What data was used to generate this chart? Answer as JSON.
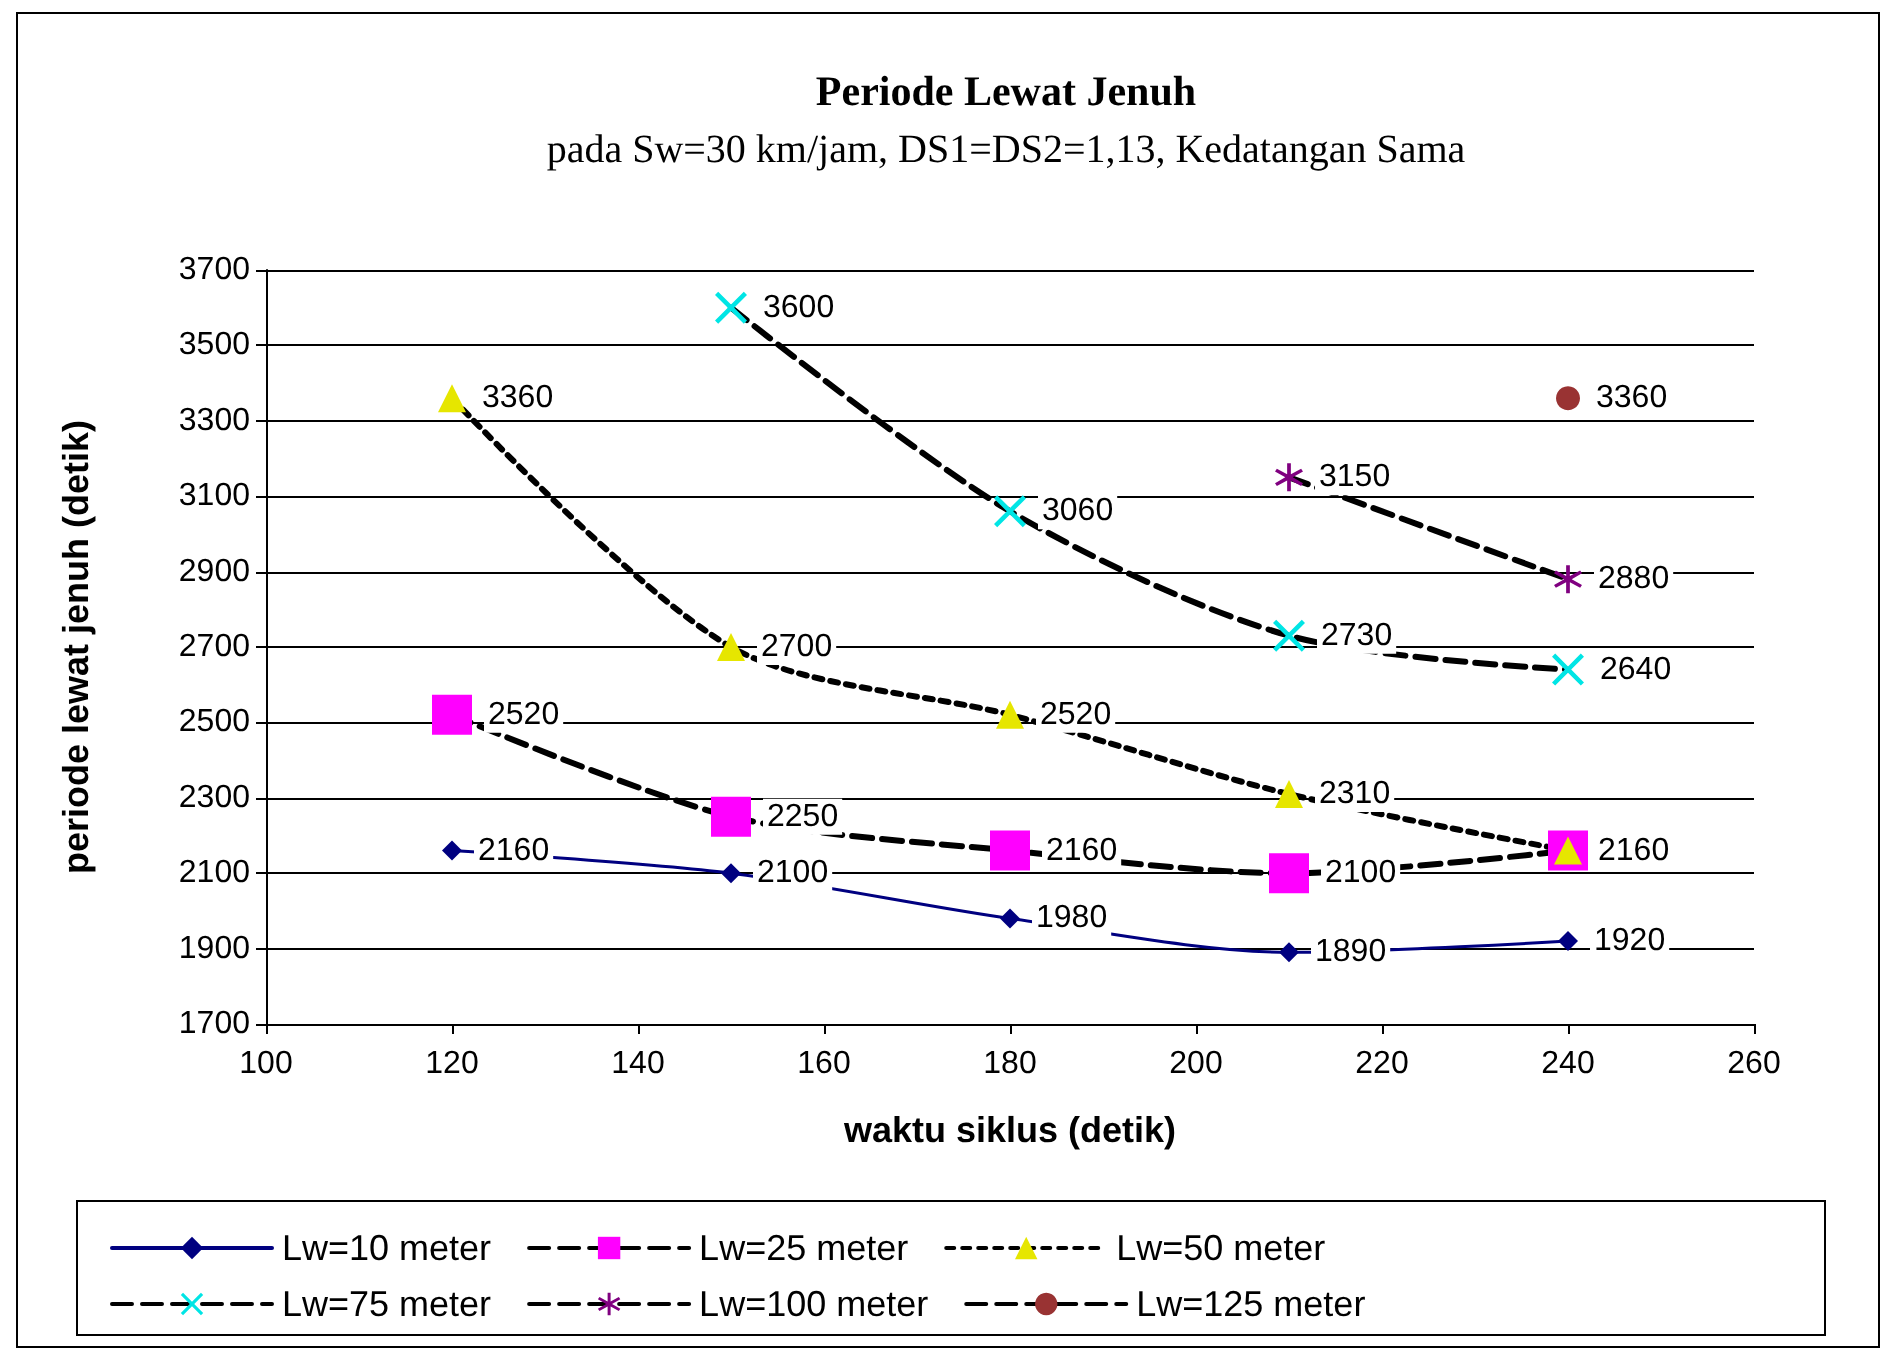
{
  "chart_data": {
    "type": "line",
    "title": "Periode Lewat Jenuh",
    "subtitle": "pada Sw=30 km/jam, DS1=DS2=1,13, Kedatangan Sama",
    "xlabel": "waktu siklus (detik)",
    "ylabel": "periode lewat jenuh (detik)",
    "xlim": [
      100,
      260
    ],
    "xticks": [
      100,
      120,
      140,
      160,
      180,
      200,
      220,
      240,
      260
    ],
    "ylim": [
      1700,
      3700
    ],
    "yticks": [
      1700,
      1900,
      2100,
      2300,
      2500,
      2700,
      2900,
      3100,
      3300,
      3500,
      3700
    ],
    "grid": "y",
    "legend": "bottom",
    "data_labels": true,
    "series": [
      {
        "name": "Lw=10 meter",
        "color": "#000080",
        "marker": "diamond",
        "line_style": "solid",
        "x": [
          120,
          150,
          180,
          210,
          240
        ],
        "values": [
          2160,
          2100,
          1980,
          1890,
          1920
        ]
      },
      {
        "name": "Lw=25 meter",
        "color": "#ff00ff",
        "marker": "square",
        "line_style": "dashed",
        "x": [
          120,
          150,
          180,
          210,
          240
        ],
        "values": [
          2520,
          2250,
          2160,
          2100,
          2160
        ],
        "value_labels": [
          "2520",
          "2250",
          "2160",
          "2100",
          null
        ]
      },
      {
        "name": "Lw=50 meter",
        "color": "#e6e600",
        "marker": "triangle",
        "line_style": "dotted",
        "x": [
          120,
          150,
          180,
          210,
          240
        ],
        "values": [
          3360,
          2700,
          2520,
          2310,
          2160
        ]
      },
      {
        "name": "Lw=75 meter",
        "color": "#00e5e5",
        "marker": "cross",
        "line_style": "dashed",
        "x": [
          150,
          180,
          210,
          240
        ],
        "values": [
          3600,
          3060,
          2730,
          2640
        ]
      },
      {
        "name": "Lw=100 meter",
        "color": "#800080",
        "marker": "star",
        "line_style": "dashed",
        "x": [
          210,
          240
        ],
        "values": [
          3150,
          2880
        ]
      },
      {
        "name": "Lw=125 meter",
        "color": "#993333",
        "marker": "circle",
        "line_style": "dashed",
        "x": [
          240
        ],
        "values": [
          3360
        ]
      }
    ]
  }
}
